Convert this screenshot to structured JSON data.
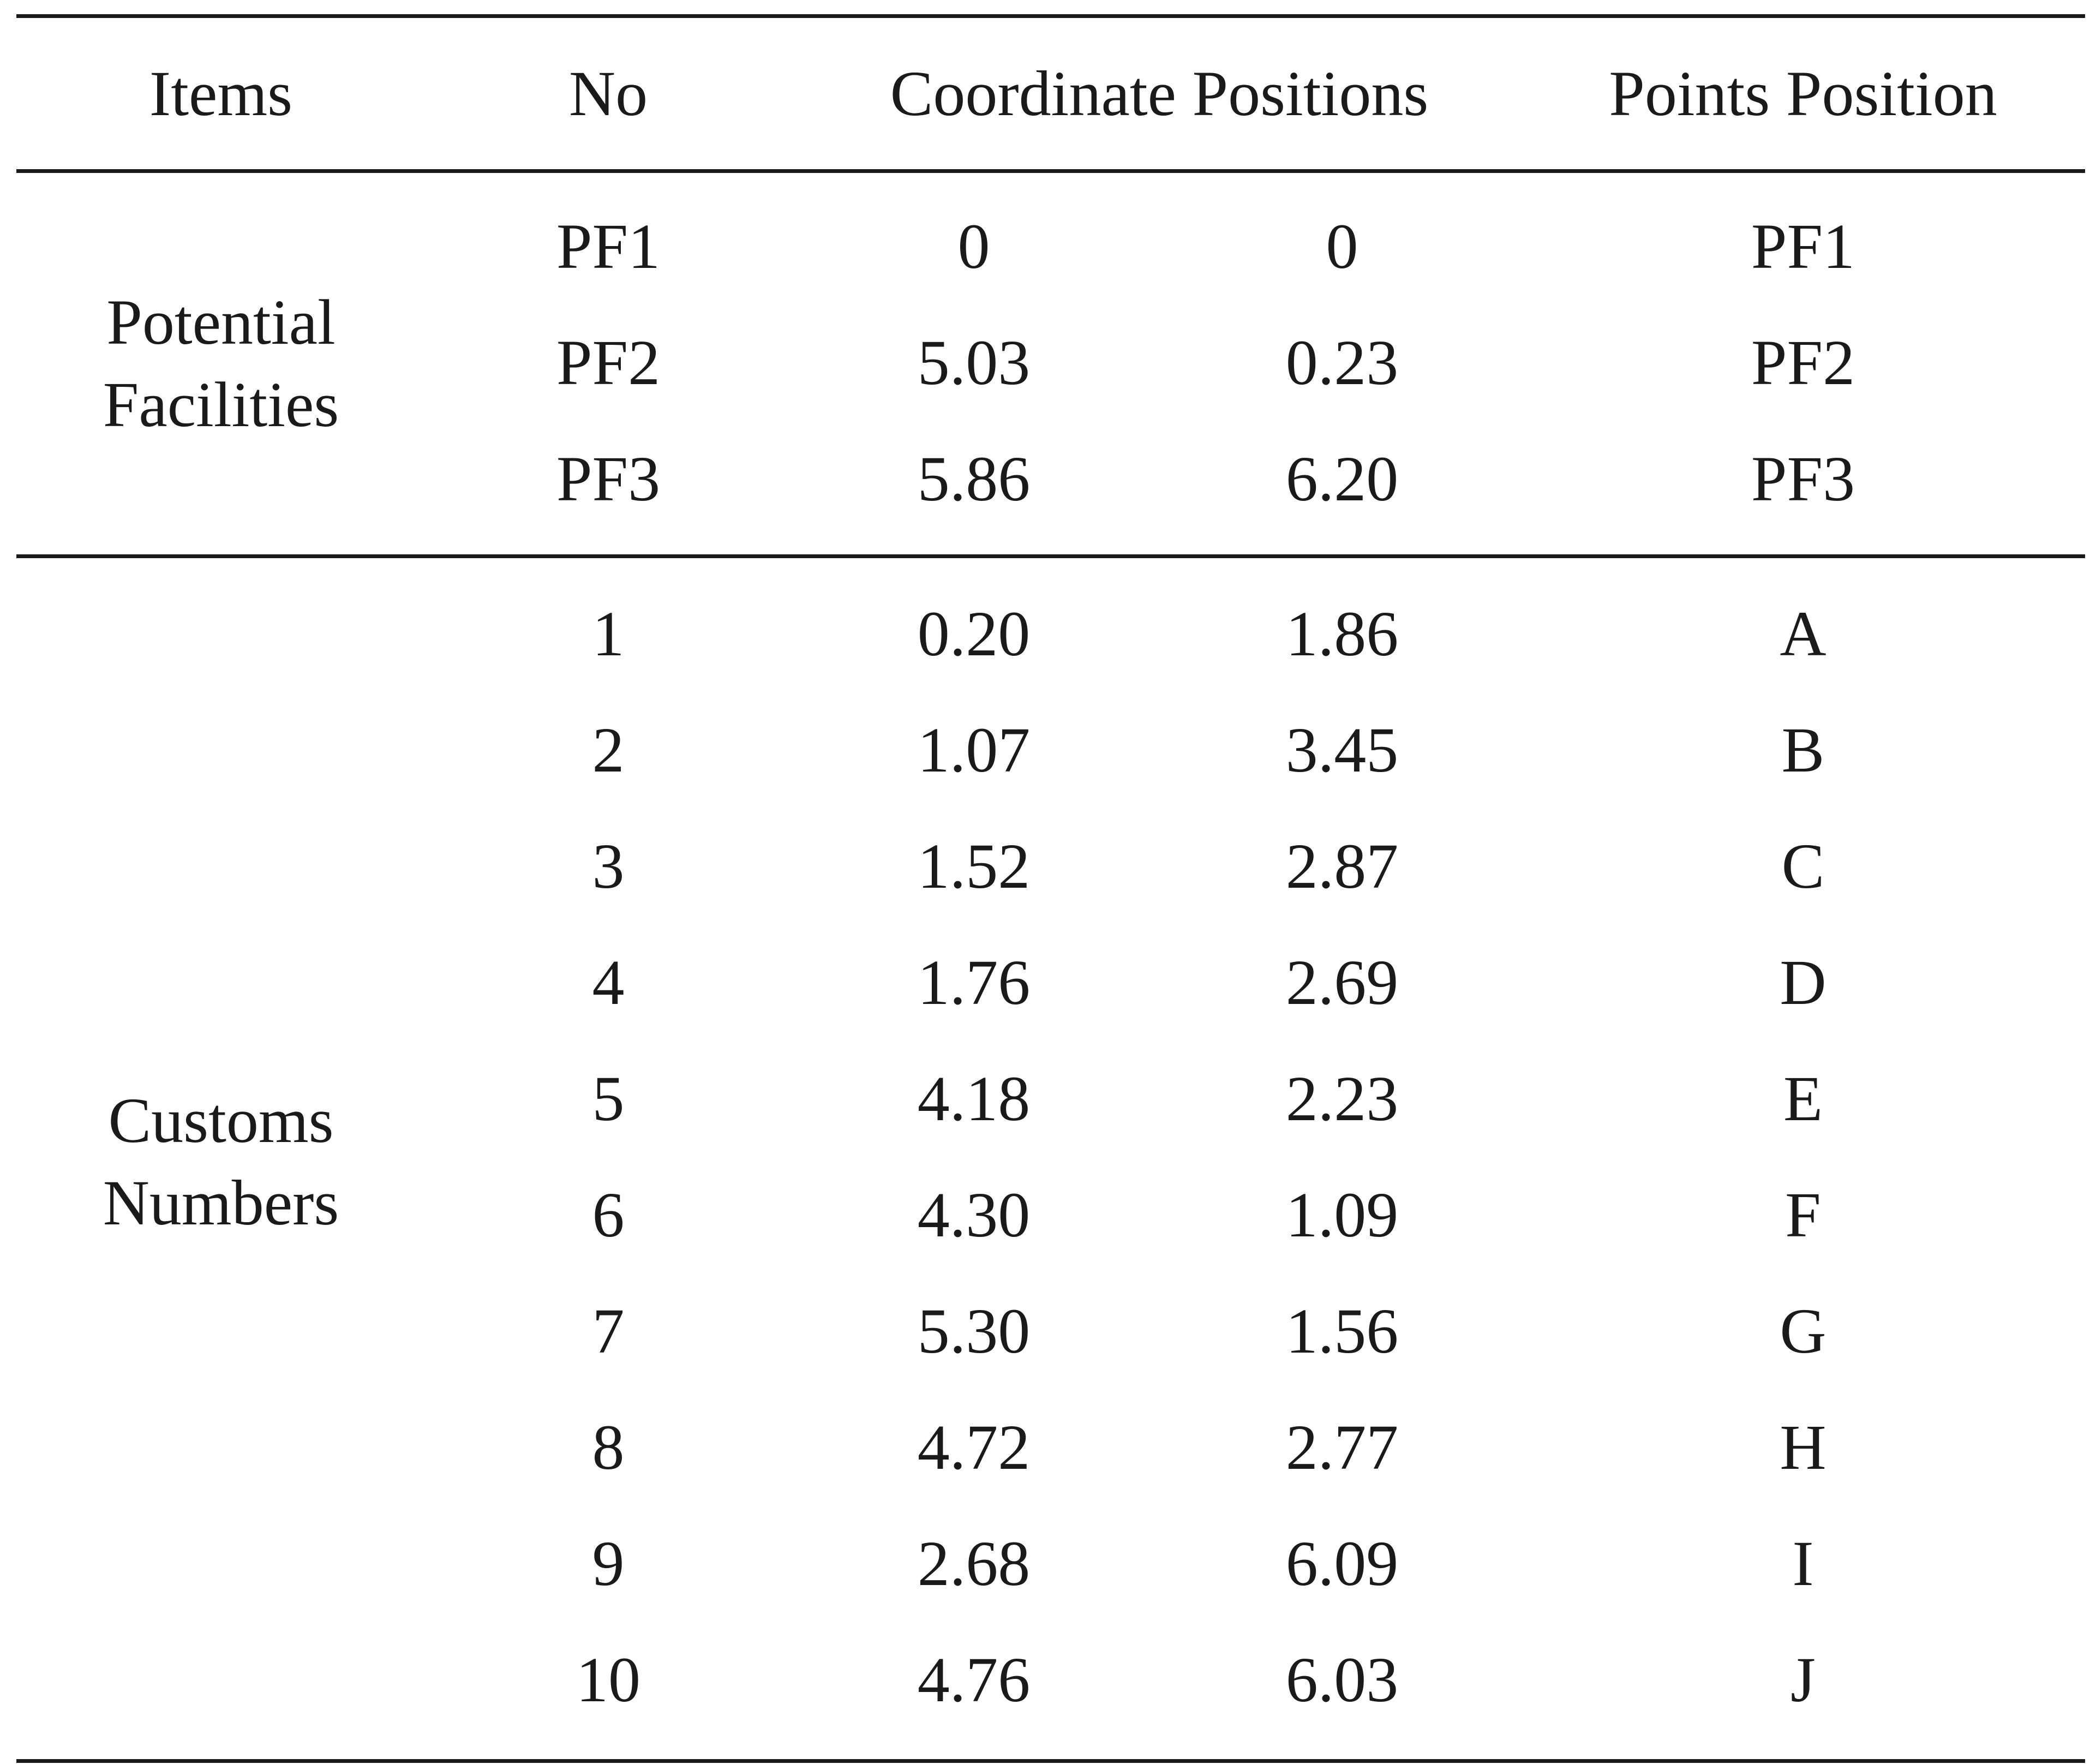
{
  "table": {
    "headers": {
      "items": "Items",
      "no": "No",
      "coordinate_positions": "Coordinate Positions",
      "points_position": "Points Position"
    },
    "groups": [
      {
        "label_line1": "Potential",
        "label_line2": "Facilities",
        "rows": [
          {
            "no": "PF1",
            "x": "0",
            "y": "0",
            "point": "PF1"
          },
          {
            "no": "PF2",
            "x": "5.03",
            "y": "0.23",
            "point": "PF2"
          },
          {
            "no": "PF3",
            "x": "5.86",
            "y": "6.20",
            "point": "PF3"
          }
        ]
      },
      {
        "label_line1": "Customs",
        "label_line2": "Numbers",
        "rows": [
          {
            "no": "1",
            "x": "0.20",
            "y": "1.86",
            "point": "A"
          },
          {
            "no": "2",
            "x": "1.07",
            "y": "3.45",
            "point": "B"
          },
          {
            "no": "3",
            "x": "1.52",
            "y": "2.87",
            "point": "C"
          },
          {
            "no": "4",
            "x": "1.76",
            "y": "2.69",
            "point": "D"
          },
          {
            "no": "5",
            "x": "4.18",
            "y": "2.23",
            "point": "E"
          },
          {
            "no": "6",
            "x": "4.30",
            "y": "1.09",
            "point": "F"
          },
          {
            "no": "7",
            "x": "5.30",
            "y": "1.56",
            "point": "G"
          },
          {
            "no": "8",
            "x": "4.72",
            "y": "2.77",
            "point": "H"
          },
          {
            "no": "9",
            "x": "2.68",
            "y": "6.09",
            "point": "I"
          },
          {
            "no": "10",
            "x": "4.76",
            "y": "6.03",
            "point": "J"
          }
        ]
      }
    ]
  }
}
